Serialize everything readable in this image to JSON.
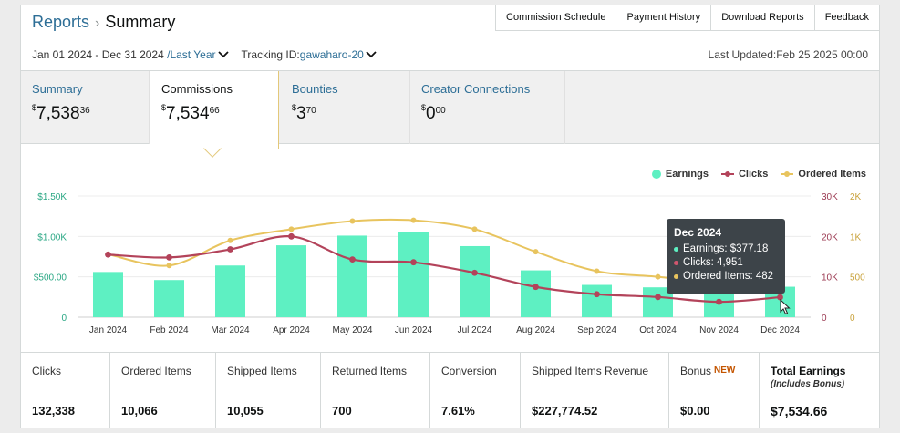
{
  "header": {
    "crumb_reports": "Reports",
    "crumb_summary": "Summary",
    "links": [
      "Commission Schedule",
      "Payment History",
      "Download Reports",
      "Feedback"
    ]
  },
  "filters": {
    "date_range": "Jan 01 2024 - Dec 31 2024",
    "period": "/Last Year",
    "tracking_label": "Tracking ID:",
    "tracking_id": "gawaharo-20",
    "last_updated": "Last Updated:Feb 25 2025 00:00"
  },
  "tabs": [
    {
      "label": "Summary",
      "currency": "$",
      "whole": "7,538",
      "cents": "36"
    },
    {
      "label": "Commissions",
      "currency": "$",
      "whole": "7,534",
      "cents": "66"
    },
    {
      "label": "Bounties",
      "currency": "$",
      "whole": "3",
      "cents": "70"
    },
    {
      "label": "Creator Connections",
      "currency": "$",
      "whole": "0",
      "cents": "00"
    }
  ],
  "legend": {
    "earnings": "Earnings",
    "clicks": "Clicks",
    "ordered": "Ordered Items"
  },
  "colors": {
    "earnings": "#5ef0c2",
    "clicks": "#b3435a",
    "ordered": "#e8c45e",
    "link": "#2d6e96",
    "tooltip_bg": "#3d4449"
  },
  "chart_data": {
    "type": "bar",
    "categories": [
      "Jan 2024",
      "Feb 2024",
      "Mar 2024",
      "Apr 2024",
      "May 2024",
      "Jun 2024",
      "Jul 2024",
      "Aug 2024",
      "Sep 2024",
      "Oct 2024",
      "Nov 2024",
      "Dec 2024"
    ],
    "series": [
      {
        "name": "Earnings",
        "type": "bar",
        "axis": "left",
        "values": [
          560,
          460,
          640,
          890,
          1010,
          1050,
          880,
          580,
          400,
          370,
          340,
          377.18
        ]
      },
      {
        "name": "Clicks",
        "type": "line",
        "axis": "right1",
        "values": [
          15500,
          14800,
          16800,
          20000,
          14300,
          13600,
          11000,
          7500,
          5700,
          5000,
          3800,
          4951
        ]
      },
      {
        "name": "Ordered Items",
        "type": "line",
        "axis": "right2",
        "values": [
          780,
          640,
          950,
          1180,
          1380,
          1400,
          1180,
          810,
          570,
          500,
          420,
          482
        ]
      }
    ],
    "y_left": {
      "ticks": [
        "0",
        "$500.00",
        "$1.00K",
        "$1.50K"
      ],
      "max": 1500
    },
    "y_right1": {
      "ticks": [
        "0",
        "10K",
        "20K",
        "30K"
      ],
      "max": 30000
    },
    "y_right2": {
      "ticks": [
        "0",
        "500",
        "1K",
        "2K"
      ]
    },
    "grid": true,
    "legend_position": "top-right"
  },
  "tooltip": {
    "title": "Dec 2024",
    "earnings": "Earnings: $377.18",
    "clicks": "Clicks: 4,951",
    "ordered": "Ordered Items: 482"
  },
  "metrics": [
    {
      "label": "Clicks",
      "value": "132,338"
    },
    {
      "label": "Ordered Items",
      "value": "10,066"
    },
    {
      "label": "Shipped Items",
      "value": "10,055"
    },
    {
      "label": "Returned Items",
      "value": "700"
    },
    {
      "label": "Conversion",
      "value": "7.61%"
    },
    {
      "label": "Shipped Items Revenue",
      "value": "$227,774.52"
    },
    {
      "label": "Bonus",
      "badge": "NEW",
      "value": "$0.00"
    },
    {
      "label": "Total Earnings",
      "sub": "(Includes Bonus)",
      "value": "$7,534.66"
    }
  ]
}
